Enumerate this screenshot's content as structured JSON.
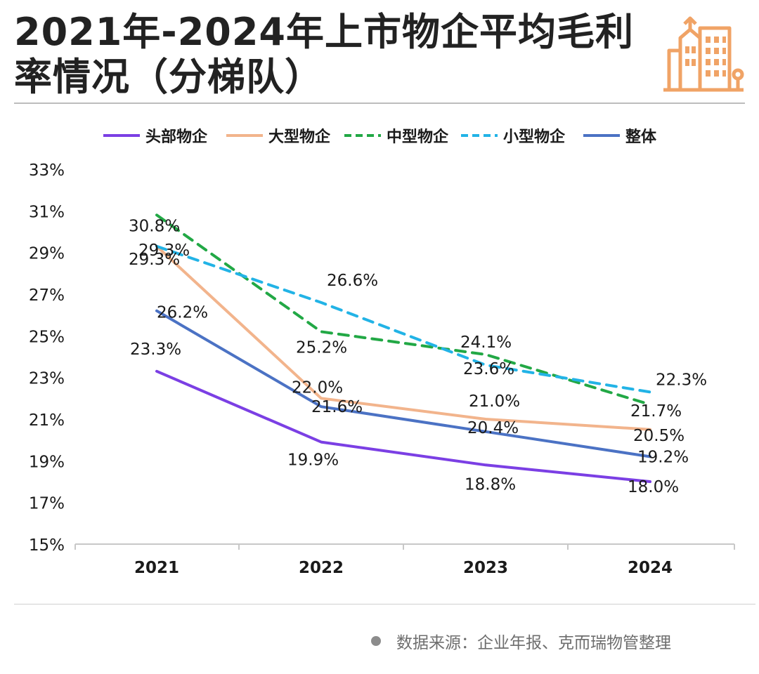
{
  "title": "2021年-2024年上市物企平均毛利率情况（分梯队）",
  "source_text": "数据来源：企业年报、克而瑞物管整理",
  "chart_data": {
    "type": "line",
    "title": "2021年-2024年上市物企平均毛利率情况（分梯队）",
    "x": [
      "2021",
      "2022",
      "2023",
      "2024"
    ],
    "ylim": [
      15,
      33
    ],
    "yticks": [
      "15%",
      "17%",
      "19%",
      "21%",
      "23%",
      "25%",
      "27%",
      "29%",
      "31%",
      "33%"
    ],
    "grid": false,
    "legend_position": "top",
    "series": [
      {
        "name": "头部物企",
        "values": [
          23.3,
          19.9,
          18.8,
          18.0
        ],
        "labels": [
          "23.3%",
          "19.9%",
          "18.8%",
          "18.0%"
        ],
        "color": "#7b3fe4",
        "dash": "solid"
      },
      {
        "name": "大型物企",
        "values": [
          29.3,
          22.0,
          21.0,
          20.5
        ],
        "labels": [
          "29.3%",
          "22.0%",
          "21.0%",
          "20.5%"
        ],
        "color": "#f2b48c",
        "dash": "solid"
      },
      {
        "name": "中型物企",
        "values": [
          30.8,
          25.2,
          24.1,
          21.7
        ],
        "labels": [
          "30.8%",
          "25.2%",
          "24.1%",
          "21.7%"
        ],
        "color": "#22a845",
        "dash": "dashed"
      },
      {
        "name": "小型物企",
        "values": [
          29.3,
          26.6,
          23.6,
          22.3
        ],
        "labels": [
          "29.3%",
          "26.6%",
          "23.6%",
          "22.3%"
        ],
        "color": "#22b3e6",
        "dash": "dashed"
      },
      {
        "name": "整体",
        "values": [
          26.2,
          21.6,
          20.4,
          19.2
        ],
        "labels": [
          "26.2%",
          "21.6%",
          "20.4%",
          "19.2%"
        ],
        "color": "#4b72c4",
        "dash": "solid"
      }
    ]
  }
}
